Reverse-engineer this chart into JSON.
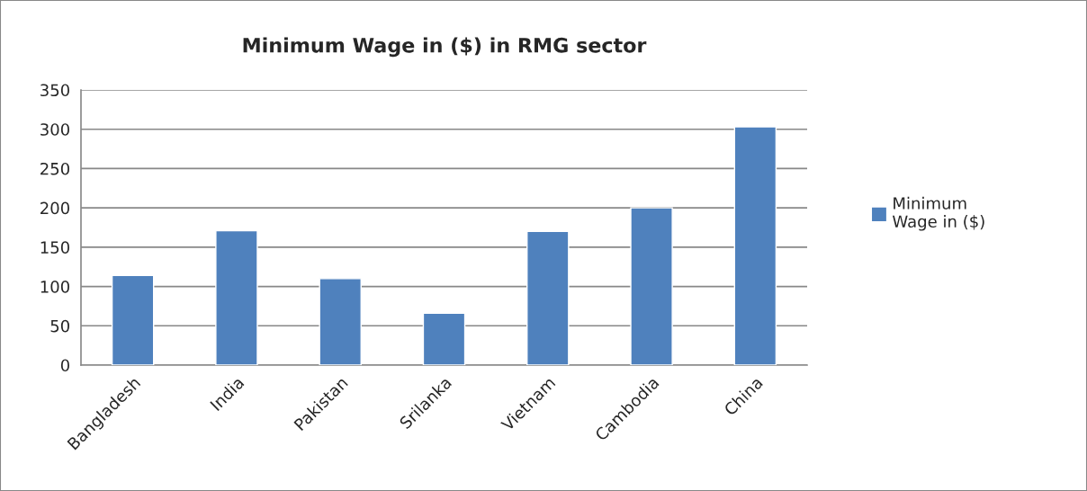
{
  "chart_data": {
    "type": "bar",
    "title": "Minimum Wage in ($) in RMG sector",
    "categories": [
      "Bangladesh",
      "India",
      "Pakistan",
      "Srilanka",
      "Vietnam",
      "Cambodia",
      "China"
    ],
    "series": [
      {
        "name": "Minimum\nWage in ($)",
        "color": "#4f81bd",
        "values": [
          114,
          171,
          110,
          66,
          170,
          200,
          303
        ]
      }
    ],
    "ylim": [
      0,
      350
    ],
    "yticks": [
      0,
      50,
      100,
      150,
      200,
      250,
      300,
      350
    ],
    "grid": "y",
    "legend": "right"
  }
}
